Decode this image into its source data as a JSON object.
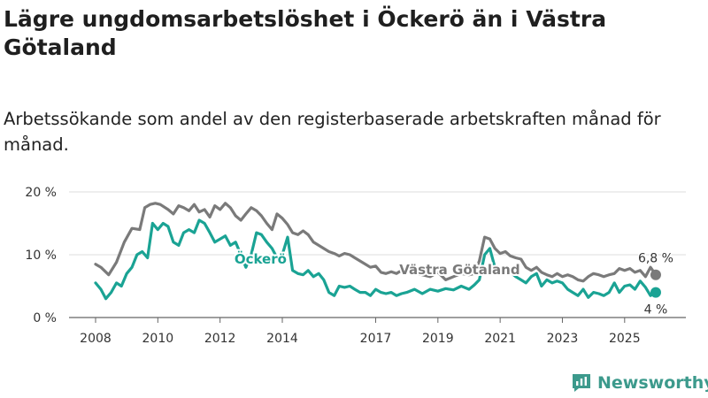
{
  "header": {
    "title": "Lägre ungdomsarbetslöshet i Öckerö än i Västra Götaland",
    "subtitle": "Arbetssökande som andel av den registerbaserade arbetskraften månad för månad."
  },
  "brand": {
    "name": "Newsworthy"
  },
  "colors": {
    "vg": "#7a7a7a",
    "ockero": "#1aa394",
    "grid": "#dcdcdc",
    "brand": "#3c9a8c"
  },
  "chart_data": {
    "type": "line",
    "title": "Lägre ungdomsarbetslöshet i Öckerö än i Västra Götaland",
    "subtitle": "Arbetssökande som andel av den registerbaserade arbetskraften månad för månad.",
    "xlabel": "",
    "ylabel": "",
    "xlim": [
      2008.0,
      2026.2
    ],
    "ylim": [
      0,
      20
    ],
    "y_ticks": [
      0,
      10,
      20
    ],
    "y_tick_labels": [
      "0 %",
      "10 %",
      "20 %"
    ],
    "x_ticks": [
      2008,
      2010,
      2012,
      2014,
      2017,
      2019,
      2021,
      2023,
      2025
    ],
    "x_tick_labels": [
      "2008",
      "2010",
      "2012",
      "2014",
      "2017",
      "2019",
      "2021",
      "2023",
      "2025"
    ],
    "grid": true,
    "series": [
      {
        "name": "Västra Götaland",
        "label": "Västra Götaland",
        "end_label": "6,8 %",
        "color": "#7a7a7a",
        "x": [
          2008.0,
          2008.17,
          2008.42,
          2008.67,
          2008.92,
          2009.17,
          2009.42,
          2009.58,
          2009.75,
          2009.92,
          2010.08,
          2010.33,
          2010.5,
          2010.67,
          2010.83,
          2011.0,
          2011.17,
          2011.33,
          2011.5,
          2011.67,
          2011.83,
          2012.0,
          2012.17,
          2012.33,
          2012.5,
          2012.67,
          2012.83,
          2013.0,
          2013.17,
          2013.33,
          2013.5,
          2013.67,
          2013.83,
          2014.0,
          2014.17,
          2014.33,
          2014.5,
          2014.67,
          2014.83,
          2015.0,
          2015.17,
          2015.33,
          2015.5,
          2015.67,
          2015.83,
          2016.0,
          2016.17,
          2016.33,
          2016.5,
          2016.67,
          2016.83,
          2017.0,
          2017.17,
          2017.33,
          2017.5,
          2017.67,
          2017.83,
          2018.0,
          2018.25,
          2018.5,
          2018.75,
          2019.0,
          2019.25,
          2019.5,
          2019.75,
          2020.0,
          2020.17,
          2020.33,
          2020.5,
          2020.67,
          2020.83,
          2021.0,
          2021.17,
          2021.33,
          2021.5,
          2021.67,
          2021.83,
          2022.0,
          2022.17,
          2022.33,
          2022.5,
          2022.67,
          2022.83,
          2023.0,
          2023.17,
          2023.33,
          2023.5,
          2023.67,
          2023.83,
          2024.0,
          2024.17,
          2024.33,
          2024.5,
          2024.67,
          2024.83,
          2025.0,
          2025.17,
          2025.33,
          2025.5,
          2025.67,
          2025.83,
          2026.0
        ],
        "values": [
          8.5,
          8.0,
          6.8,
          8.8,
          12.0,
          14.2,
          14.0,
          17.5,
          18.0,
          18.2,
          18.0,
          17.2,
          16.5,
          17.8,
          17.5,
          17.0,
          18.0,
          16.8,
          17.2,
          16.0,
          17.8,
          17.2,
          18.2,
          17.5,
          16.2,
          15.5,
          16.5,
          17.5,
          17.0,
          16.2,
          15.0,
          14.0,
          16.5,
          15.8,
          14.8,
          13.5,
          13.2,
          13.8,
          13.2,
          12.0,
          11.5,
          11.0,
          10.5,
          10.2,
          9.8,
          10.2,
          10.0,
          9.5,
          9.0,
          8.5,
          8.0,
          8.2,
          7.2,
          7.0,
          7.3,
          7.0,
          7.5,
          8.0,
          7.0,
          6.8,
          6.5,
          7.2,
          6.0,
          6.5,
          7.0,
          6.8,
          7.0,
          9.0,
          12.8,
          12.5,
          11.0,
          10.2,
          10.5,
          9.8,
          9.5,
          9.3,
          8.0,
          7.5,
          8.0,
          7.2,
          6.8,
          6.5,
          7.0,
          6.5,
          6.8,
          6.5,
          6.0,
          5.8,
          6.5,
          7.0,
          6.8,
          6.5,
          6.8,
          7.0,
          7.8,
          7.5,
          7.8,
          7.2,
          7.5,
          6.5,
          8.0,
          6.8
        ]
      },
      {
        "name": "Öckerö",
        "label": "Öckerö",
        "end_label": "4 %",
        "color": "#1aa394",
        "x": [
          2008.0,
          2008.17,
          2008.33,
          2008.5,
          2008.67,
          2008.83,
          2009.0,
          2009.17,
          2009.33,
          2009.5,
          2009.67,
          2009.83,
          2010.0,
          2010.17,
          2010.33,
          2010.5,
          2010.67,
          2010.83,
          2011.0,
          2011.17,
          2011.33,
          2011.5,
          2011.67,
          2011.83,
          2012.0,
          2012.17,
          2012.33,
          2012.5,
          2012.67,
          2012.83,
          2013.0,
          2013.17,
          2013.33,
          2013.5,
          2013.67,
          2013.83,
          2014.0,
          2014.17,
          2014.33,
          2014.5,
          2014.67,
          2014.83,
          2015.0,
          2015.17,
          2015.33,
          2015.5,
          2015.67,
          2015.83,
          2016.0,
          2016.17,
          2016.33,
          2016.5,
          2016.67,
          2016.83,
          2017.0,
          2017.17,
          2017.33,
          2017.5,
          2017.67,
          2017.83,
          2018.0,
          2018.25,
          2018.5,
          2018.75,
          2019.0,
          2019.25,
          2019.5,
          2019.75,
          2020.0,
          2020.17,
          2020.33,
          2020.5,
          2020.67,
          2020.83,
          2021.0,
          2021.17,
          2021.33,
          2021.5,
          2021.67,
          2021.83,
          2022.0,
          2022.17,
          2022.33,
          2022.5,
          2022.67,
          2022.83,
          2023.0,
          2023.17,
          2023.33,
          2023.5,
          2023.67,
          2023.83,
          2024.0,
          2024.17,
          2024.33,
          2024.5,
          2024.67,
          2024.83,
          2025.0,
          2025.17,
          2025.33,
          2025.5,
          2025.67,
          2025.83,
          2026.0
        ],
        "values": [
          5.5,
          4.5,
          3.0,
          4.0,
          5.5,
          5.0,
          7.0,
          8.0,
          10.0,
          10.5,
          9.5,
          15.0,
          14.0,
          15.0,
          14.5,
          12.0,
          11.5,
          13.5,
          14.0,
          13.5,
          15.5,
          15.0,
          13.5,
          12.0,
          12.5,
          13.0,
          11.5,
          12.0,
          10.0,
          8.0,
          10.0,
          13.5,
          13.2,
          12.0,
          11.0,
          9.5,
          10.0,
          12.8,
          7.5,
          7.0,
          6.8,
          7.5,
          6.5,
          7.0,
          6.0,
          4.0,
          3.5,
          5.0,
          4.8,
          5.0,
          4.5,
          4.0,
          4.0,
          3.5,
          4.5,
          4.0,
          3.8,
          4.0,
          3.5,
          3.8,
          4.0,
          4.5,
          3.8,
          4.5,
          4.2,
          4.6,
          4.4,
          5.0,
          4.5,
          5.2,
          6.0,
          10.0,
          11.0,
          8.0,
          7.5,
          8.0,
          7.2,
          6.5,
          6.0,
          5.5,
          6.5,
          7.0,
          5.0,
          6.0,
          5.5,
          5.8,
          5.5,
          4.5,
          4.0,
          3.5,
          4.5,
          3.2,
          4.0,
          3.8,
          3.5,
          4.0,
          5.5,
          4.0,
          5.0,
          5.2,
          4.5,
          5.8,
          4.8,
          3.5,
          4.0
        ]
      }
    ]
  }
}
